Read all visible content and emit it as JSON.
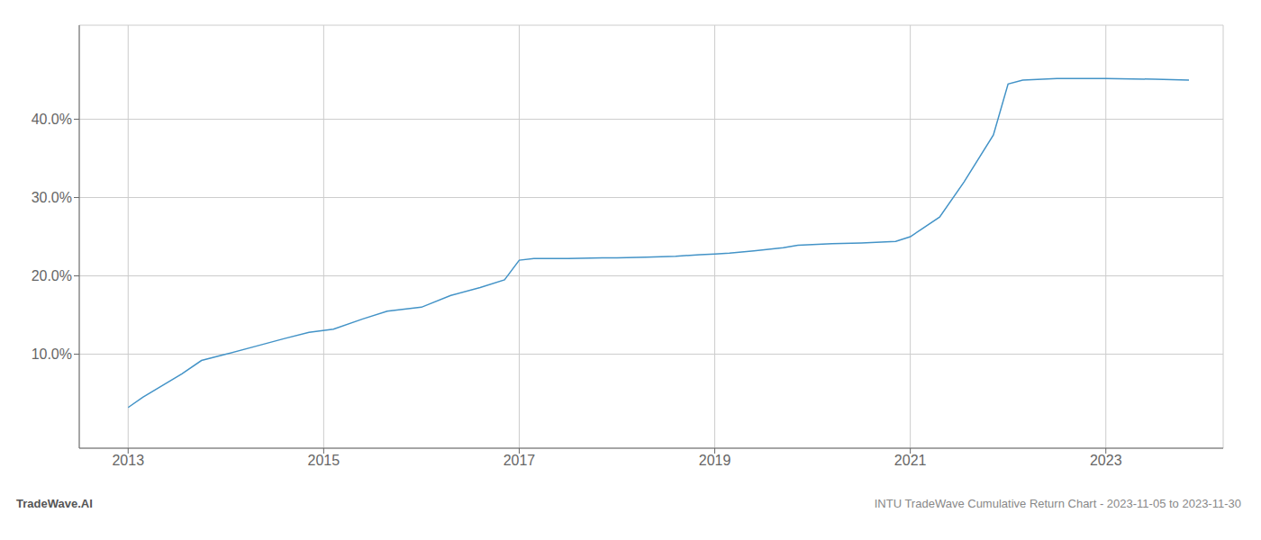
{
  "chart_data": {
    "type": "line",
    "annotations": [
      "TradeWave.AI",
      "INTU TradeWave Cumulative Return Chart - 2023-11-05 to 2023-11-30"
    ],
    "x": [
      2013.0,
      2013.15,
      2013.35,
      2013.55,
      2013.75,
      2014.0,
      2014.3,
      2014.6,
      2014.85,
      2015.1,
      2015.4,
      2015.65,
      2016.0,
      2016.3,
      2016.6,
      2016.85,
      2017.0,
      2017.15,
      2017.5,
      2017.85,
      2018.0,
      2018.3,
      2018.6,
      2018.85,
      2019.0,
      2019.15,
      2019.4,
      2019.7,
      2019.85,
      2020.0,
      2020.2,
      2020.5,
      2020.7,
      2020.85,
      2021.0,
      2021.3,
      2021.55,
      2021.85,
      2022.0,
      2022.15,
      2022.5,
      2023.0,
      2023.5,
      2023.85
    ],
    "values": [
      3.2,
      4.5,
      6.0,
      7.5,
      9.2,
      10.0,
      11.0,
      12.0,
      12.8,
      13.2,
      14.5,
      15.5,
      16.0,
      17.5,
      18.5,
      19.5,
      22.0,
      22.2,
      22.2,
      22.3,
      22.3,
      22.4,
      22.5,
      22.7,
      22.8,
      22.9,
      23.2,
      23.6,
      23.9,
      24.0,
      24.1,
      24.2,
      24.3,
      24.4,
      25.0,
      27.5,
      32.0,
      38.0,
      44.5,
      45.0,
      45.2,
      45.2,
      45.1,
      45.0
    ],
    "color": "#4393c7",
    "xlim": [
      2012.5,
      2024.2
    ],
    "xticks": [
      2013,
      2015,
      2017,
      2019,
      2021,
      2023
    ],
    "ylim": [
      -2,
      52
    ],
    "yticks": [
      {
        "value": 10.0,
        "label": "10.0%"
      },
      {
        "value": 20.0,
        "label": "20.0%"
      },
      {
        "value": 30.0,
        "label": "30.0%"
      },
      {
        "value": 40.0,
        "label": "40.0%"
      }
    ],
    "grid": true
  }
}
